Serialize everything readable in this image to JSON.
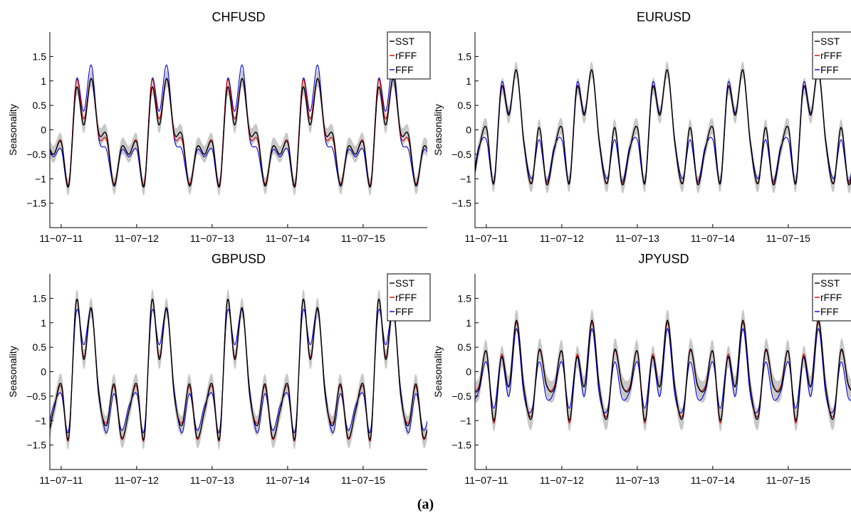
{
  "figure": {
    "caption": "(a)"
  },
  "chart_data": [
    {
      "type": "line",
      "title": "CHFUSD",
      "ylabel": "Seasonality",
      "xlabel": "",
      "xlim": [
        -0.15,
        4.85
      ],
      "ylim": [
        -2,
        2
      ],
      "yticks": [
        -1.5,
        -1,
        -0.5,
        0,
        0.5,
        1,
        1.5
      ],
      "ytick_labels": [
        "−1.5",
        "−1",
        "−0.5",
        "0",
        "0.5",
        "1",
        "1.5"
      ],
      "xticks": [
        0,
        1,
        2,
        3,
        4
      ],
      "xtick_labels": [
        "11−07−11",
        "11−07−12",
        "11−07−13",
        "11−07−14",
        "11−07−15"
      ],
      "legend": "top-right",
      "band": {
        "series": "SST",
        "half_width": 0.17,
        "color": "#c8c8c8"
      },
      "x": [
        0.0,
        0.1,
        0.2,
        0.3,
        0.4,
        0.5,
        0.6,
        0.7,
        0.8,
        0.9
      ],
      "series": [
        {
          "name": "SST",
          "color": "#000000",
          "values": [
            -0.25,
            -1.15,
            0.85,
            0.1,
            1.05,
            -0.08,
            -0.1,
            -1.15,
            -0.35,
            -0.5
          ]
        },
        {
          "name": "rFFF",
          "color": "#d40000",
          "values": [
            -0.22,
            -1.1,
            1.0,
            0.22,
            1.05,
            -0.15,
            -0.2,
            -1.1,
            -0.35,
            -0.5
          ]
        },
        {
          "name": "FFF",
          "color": "#0000dd",
          "values": [
            -0.4,
            -1.12,
            1.02,
            0.38,
            1.32,
            -0.2,
            -0.4,
            -1.12,
            -0.42,
            -0.55
          ]
        }
      ]
    },
    {
      "type": "line",
      "title": "EURUSD",
      "ylabel": "Seasonality",
      "xlabel": "",
      "xlim": [
        -0.15,
        4.85
      ],
      "ylim": [
        -2,
        2
      ],
      "yticks": [
        -1.5,
        -1,
        -0.5,
        0,
        0.5,
        1,
        1.5
      ],
      "ytick_labels": [
        "−1.5",
        "−1",
        "−0.5",
        "0",
        "0.5",
        "1",
        "1.5"
      ],
      "xticks": [
        0,
        1,
        2,
        3,
        4
      ],
      "xtick_labels": [
        "11−07−11",
        "11−07−12",
        "11−07−13",
        "11−07−14",
        "11−07−15"
      ],
      "legend": "top-right",
      "band": {
        "series": "SST",
        "half_width": 0.17,
        "color": "#c8c8c8"
      },
      "x": [
        0.0,
        0.1,
        0.2,
        0.3,
        0.4,
        0.5,
        0.6,
        0.7,
        0.8,
        0.9
      ],
      "series": [
        {
          "name": "SST",
          "color": "#000000",
          "values": [
            0.05,
            -1.1,
            0.85,
            0.3,
            1.22,
            -0.3,
            -1.1,
            0.05,
            -1.12,
            -0.4
          ]
        },
        {
          "name": "rFFF",
          "color": "#d40000",
          "values": [
            0.05,
            -1.08,
            0.87,
            0.32,
            1.22,
            -0.3,
            -1.08,
            0.05,
            -1.08,
            -0.4
          ]
        },
        {
          "name": "FFF",
          "color": "#0000dd",
          "values": [
            -0.2,
            -1.05,
            0.95,
            0.35,
            1.22,
            -0.25,
            -1.0,
            -0.2,
            -1.05,
            -0.35
          ]
        }
      ]
    },
    {
      "type": "line",
      "title": "GBPUSD",
      "ylabel": "Seasonality",
      "xlabel": "",
      "xlim": [
        -0.15,
        4.85
      ],
      "ylim": [
        -2,
        2
      ],
      "yticks": [
        -1.5,
        -1,
        -0.5,
        0,
        0.5,
        1,
        1.5
      ],
      "ytick_labels": [
        "−1.5",
        "−1",
        "−0.5",
        "0",
        "0.5",
        "1",
        "1.5"
      ],
      "xticks": [
        0,
        1,
        2,
        3,
        4
      ],
      "xtick_labels": [
        "11−07−11",
        "11−07−12",
        "11−07−13",
        "11−07−14",
        "11−07−15"
      ],
      "legend": "top-right",
      "band": {
        "series": "SST",
        "half_width": 0.2,
        "color": "#c8c8c8"
      },
      "x": [
        0.0,
        0.1,
        0.2,
        0.3,
        0.4,
        0.5,
        0.6,
        0.7,
        0.8,
        0.9
      ],
      "series": [
        {
          "name": "SST",
          "color": "#000000",
          "values": [
            -0.25,
            -1.35,
            1.45,
            0.25,
            1.3,
            -0.5,
            -1.1,
            -0.25,
            -1.35,
            -0.8
          ]
        },
        {
          "name": "rFFF",
          "color": "#d40000",
          "values": [
            -0.3,
            -1.38,
            1.45,
            0.3,
            1.3,
            -0.5,
            -1.05,
            -0.3,
            -1.38,
            -0.8
          ]
        },
        {
          "name": "FFF",
          "color": "#0000dd",
          "values": [
            -0.45,
            -1.2,
            1.22,
            0.55,
            1.25,
            -0.4,
            -1.25,
            -0.45,
            -1.2,
            -0.7
          ]
        }
      ]
    },
    {
      "type": "line",
      "title": "JPYUSD",
      "ylabel": "Seasonality",
      "xlabel": "",
      "xlim": [
        -0.15,
        4.85
      ],
      "ylim": [
        -2,
        2
      ],
      "yticks": [
        -1.5,
        -1,
        -0.5,
        0,
        0.5,
        1,
        1.5
      ],
      "ytick_labels": [
        "−1.5",
        "−1",
        "−0.5",
        "0",
        "0.5",
        "1",
        "1.5"
      ],
      "xticks": [
        0,
        1,
        2,
        3,
        4
      ],
      "xtick_labels": [
        "11−07−11",
        "11−07−12",
        "11−07−13",
        "11−07−14",
        "11−07−15"
      ],
      "legend": "top-right",
      "band": {
        "series": "SST",
        "half_width": 0.22,
        "color": "#c8c8c8"
      },
      "x": [
        0.0,
        0.1,
        0.2,
        0.3,
        0.4,
        0.5,
        0.6,
        0.7,
        0.8,
        0.9
      ],
      "series": [
        {
          "name": "SST",
          "color": "#000000",
          "values": [
            0.42,
            -1.0,
            0.3,
            -0.3,
            1.05,
            -0.35,
            -0.95,
            0.45,
            -0.28,
            -0.35
          ]
        },
        {
          "name": "rFFF",
          "color": "#d40000",
          "values": [
            0.4,
            -1.05,
            0.35,
            -0.3,
            1.0,
            -0.35,
            -0.9,
            0.42,
            -0.3,
            -0.3
          ]
        },
        {
          "name": "FFF",
          "color": "#0000dd",
          "values": [
            0.2,
            -0.75,
            0.3,
            -0.5,
            0.88,
            -0.5,
            -0.8,
            0.2,
            -0.55,
            -0.4
          ]
        }
      ]
    }
  ]
}
